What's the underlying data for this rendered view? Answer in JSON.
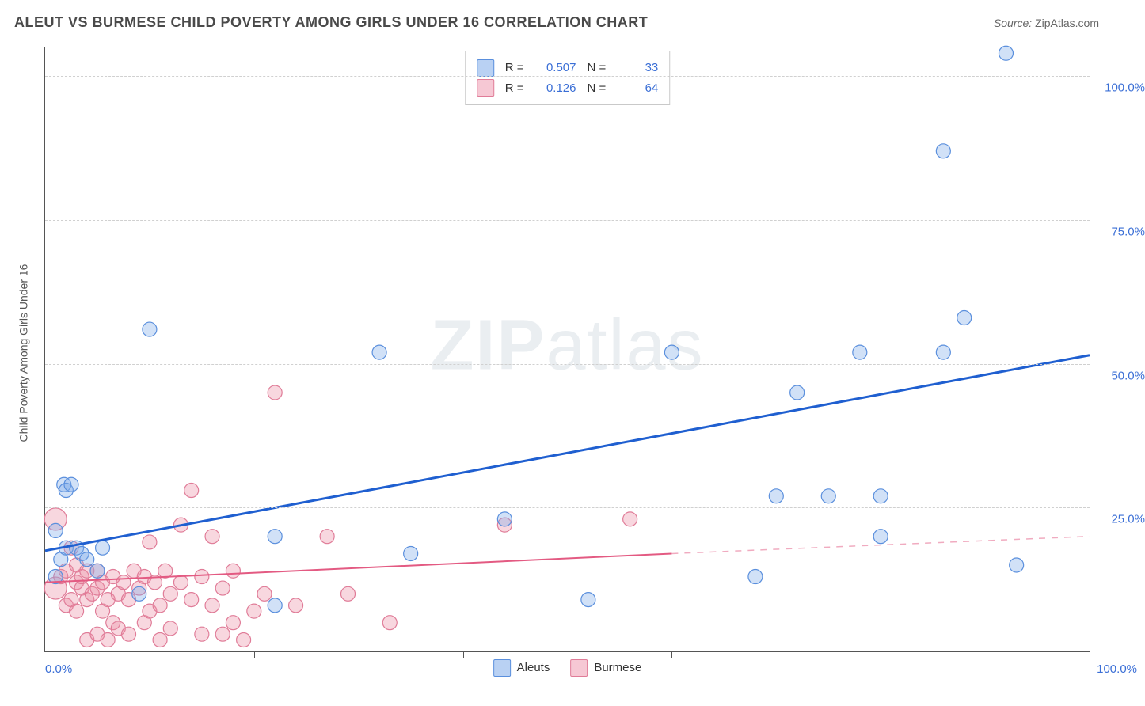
{
  "chart": {
    "type": "scatter",
    "title": "ALEUT VS BURMESE CHILD POVERTY AMONG GIRLS UNDER 16 CORRELATION CHART",
    "source_label": "Source:",
    "source_value": "ZipAtlas.com",
    "y_label": "Child Poverty Among Girls Under 16",
    "x_min": 0,
    "x_max": 100,
    "y_min": 0,
    "y_max": 105,
    "x_tick_left": "0.0%",
    "x_tick_right": "100.0%",
    "x_minor_ticks": [
      20,
      40,
      60,
      80,
      100
    ],
    "y_ticks": [
      {
        "val": 25,
        "label": "25.0%"
      },
      {
        "val": 50,
        "label": "50.0%"
      },
      {
        "val": 75,
        "label": "75.0%"
      },
      {
        "val": 100,
        "label": "100.0%"
      }
    ],
    "grid_color": "#d0d0d0",
    "bg_color": "#ffffff",
    "axis_color": "#555555",
    "watermark_html": "<b>ZIP</b>atlas",
    "series": [
      {
        "key": "aleuts",
        "name": "Aleuts",
        "r": "0.507",
        "n": "33",
        "marker_fill": "rgba(124,168,232,0.35)",
        "marker_stroke": "#5a8fdd",
        "marker_r": 9,
        "line_color": "#1f5fd0",
        "line_width": 3,
        "swatch_fill": "#b9d1f3",
        "swatch_border": "#5a8fdd",
        "trend": {
          "x1": 0,
          "y1": 17.5,
          "x2": 100,
          "y2": 51.5
        },
        "trend_extrapolate": null,
        "points": [
          {
            "x": 1,
            "y": 13
          },
          {
            "x": 1,
            "y": 21
          },
          {
            "x": 1.5,
            "y": 16
          },
          {
            "x": 1.8,
            "y": 29
          },
          {
            "x": 2,
            "y": 18
          },
          {
            "x": 2,
            "y": 28
          },
          {
            "x": 2.5,
            "y": 29
          },
          {
            "x": 3,
            "y": 18
          },
          {
            "x": 3.5,
            "y": 17
          },
          {
            "x": 4,
            "y": 16
          },
          {
            "x": 5,
            "y": 14
          },
          {
            "x": 5.5,
            "y": 18
          },
          {
            "x": 9,
            "y": 10
          },
          {
            "x": 10,
            "y": 56
          },
          {
            "x": 22,
            "y": 20
          },
          {
            "x": 22,
            "y": 8
          },
          {
            "x": 32,
            "y": 52
          },
          {
            "x": 35,
            "y": 17
          },
          {
            "x": 44,
            "y": 23
          },
          {
            "x": 52,
            "y": 9
          },
          {
            "x": 60,
            "y": 52
          },
          {
            "x": 68,
            "y": 13
          },
          {
            "x": 70,
            "y": 27
          },
          {
            "x": 72,
            "y": 45
          },
          {
            "x": 75,
            "y": 27
          },
          {
            "x": 80,
            "y": 20
          },
          {
            "x": 80,
            "y": 27
          },
          {
            "x": 86,
            "y": 52
          },
          {
            "x": 86,
            "y": 87
          },
          {
            "x": 88,
            "y": 58
          },
          {
            "x": 92,
            "y": 104
          },
          {
            "x": 93,
            "y": 15
          },
          {
            "x": 78,
            "y": 52
          }
        ]
      },
      {
        "key": "burmese",
        "name": "Burmese",
        "r": "0.126",
        "n": "64",
        "marker_fill": "rgba(236,140,164,0.35)",
        "marker_stroke": "#e07c98",
        "marker_r": 9,
        "line_color": "#e35a82",
        "line_width": 2,
        "swatch_fill": "#f6c8d4",
        "swatch_border": "#e07c98",
        "trend": {
          "x1": 0,
          "y1": 12,
          "x2": 60,
          "y2": 17
        },
        "trend_extrapolate": {
          "x1": 60,
          "y1": 17,
          "x2": 100,
          "y2": 20
        },
        "points": [
          {
            "x": 1,
            "y": 11,
            "r": 14
          },
          {
            "x": 1,
            "y": 23,
            "r": 14
          },
          {
            "x": 1.5,
            "y": 13
          },
          {
            "x": 2,
            "y": 8
          },
          {
            "x": 2,
            "y": 14
          },
          {
            "x": 2.5,
            "y": 9
          },
          {
            "x": 2.5,
            "y": 18
          },
          {
            "x": 3,
            "y": 7
          },
          {
            "x": 3,
            "y": 12
          },
          {
            "x": 3,
            "y": 15
          },
          {
            "x": 3.5,
            "y": 11
          },
          {
            "x": 3.5,
            "y": 13
          },
          {
            "x": 4,
            "y": 2
          },
          {
            "x": 4,
            "y": 9
          },
          {
            "x": 4,
            "y": 14
          },
          {
            "x": 4.5,
            "y": 10
          },
          {
            "x": 5,
            "y": 3
          },
          {
            "x": 5,
            "y": 11
          },
          {
            "x": 5,
            "y": 14
          },
          {
            "x": 5.5,
            "y": 7
          },
          {
            "x": 5.5,
            "y": 12
          },
          {
            "x": 6,
            "y": 2
          },
          {
            "x": 6,
            "y": 9
          },
          {
            "x": 6.5,
            "y": 5
          },
          {
            "x": 6.5,
            "y": 13
          },
          {
            "x": 7,
            "y": 4
          },
          {
            "x": 7,
            "y": 10
          },
          {
            "x": 7.5,
            "y": 12
          },
          {
            "x": 8,
            "y": 3
          },
          {
            "x": 8,
            "y": 9
          },
          {
            "x": 8.5,
            "y": 14
          },
          {
            "x": 9,
            "y": 11
          },
          {
            "x": 9.5,
            "y": 5
          },
          {
            "x": 9.5,
            "y": 13
          },
          {
            "x": 10,
            "y": 7
          },
          {
            "x": 10,
            "y": 19
          },
          {
            "x": 10.5,
            "y": 12
          },
          {
            "x": 11,
            "y": 2
          },
          {
            "x": 11,
            "y": 8
          },
          {
            "x": 11.5,
            "y": 14
          },
          {
            "x": 12,
            "y": 4
          },
          {
            "x": 12,
            "y": 10
          },
          {
            "x": 13,
            "y": 12
          },
          {
            "x": 13,
            "y": 22
          },
          {
            "x": 14,
            "y": 28
          },
          {
            "x": 14,
            "y": 9
          },
          {
            "x": 15,
            "y": 3
          },
          {
            "x": 15,
            "y": 13
          },
          {
            "x": 16,
            "y": 8
          },
          {
            "x": 16,
            "y": 20
          },
          {
            "x": 17,
            "y": 3
          },
          {
            "x": 17,
            "y": 11
          },
          {
            "x": 18,
            "y": 5
          },
          {
            "x": 18,
            "y": 14
          },
          {
            "x": 19,
            "y": 2
          },
          {
            "x": 20,
            "y": 7
          },
          {
            "x": 21,
            "y": 10
          },
          {
            "x": 22,
            "y": 45
          },
          {
            "x": 24,
            "y": 8
          },
          {
            "x": 27,
            "y": 20
          },
          {
            "x": 29,
            "y": 10
          },
          {
            "x": 33,
            "y": 5
          },
          {
            "x": 44,
            "y": 22
          },
          {
            "x": 56,
            "y": 23
          }
        ]
      }
    ],
    "legend_series": [
      "aleuts",
      "burmese"
    ]
  }
}
